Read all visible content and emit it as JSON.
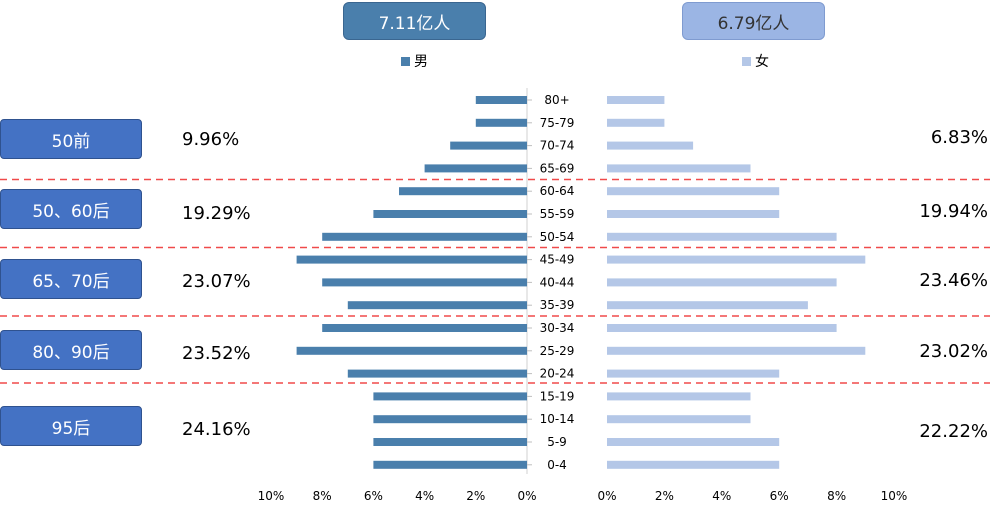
{
  "totals": {
    "male": "7.11亿人",
    "female": "6.79亿人"
  },
  "legend": {
    "male": "男",
    "female": "女"
  },
  "generations": [
    {
      "label": "50前",
      "male_pct": "9.96%",
      "female_pct": "6.83%"
    },
    {
      "label": "50、60后",
      "male_pct": "19.29%",
      "female_pct": "19.94%"
    },
    {
      "label": "65、70后",
      "male_pct": "23.07%",
      "female_pct": "23.46%"
    },
    {
      "label": "80、90后",
      "male_pct": "23.52%",
      "female_pct": "23.02%"
    },
    {
      "label": "95后",
      "male_pct": "24.16%",
      "female_pct": "22.22%"
    }
  ],
  "chart_data": {
    "type": "bar",
    "orientation": "horizontal",
    "layout": "population-pyramid",
    "categories": [
      "80+",
      "75-79",
      "70-74",
      "65-69",
      "60-64",
      "55-59",
      "50-54",
      "45-49",
      "40-44",
      "35-39",
      "30-34",
      "25-29",
      "20-24",
      "15-19",
      "10-14",
      "5-9",
      "0-4"
    ],
    "series": [
      {
        "name": "男",
        "values": [
          2,
          2,
          3,
          4,
          5,
          6,
          8,
          9,
          8,
          7,
          8,
          9,
          7,
          6,
          6,
          6,
          6
        ]
      },
      {
        "name": "女",
        "values": [
          2,
          2,
          3,
          5,
          6,
          6,
          8,
          9,
          8,
          7,
          8,
          9,
          6,
          5,
          5,
          6,
          6
        ]
      }
    ],
    "x_ticks_left": [
      "10%",
      "8%",
      "6%",
      "4%",
      "2%",
      "0%"
    ],
    "x_ticks_right": [
      "0%",
      "2%",
      "4%",
      "6%",
      "8%",
      "10%"
    ],
    "xlim": [
      0,
      10
    ],
    "colors": {
      "male": "#4a7fac",
      "female": "#b4c7e7",
      "divider": "#f04a4a"
    }
  }
}
